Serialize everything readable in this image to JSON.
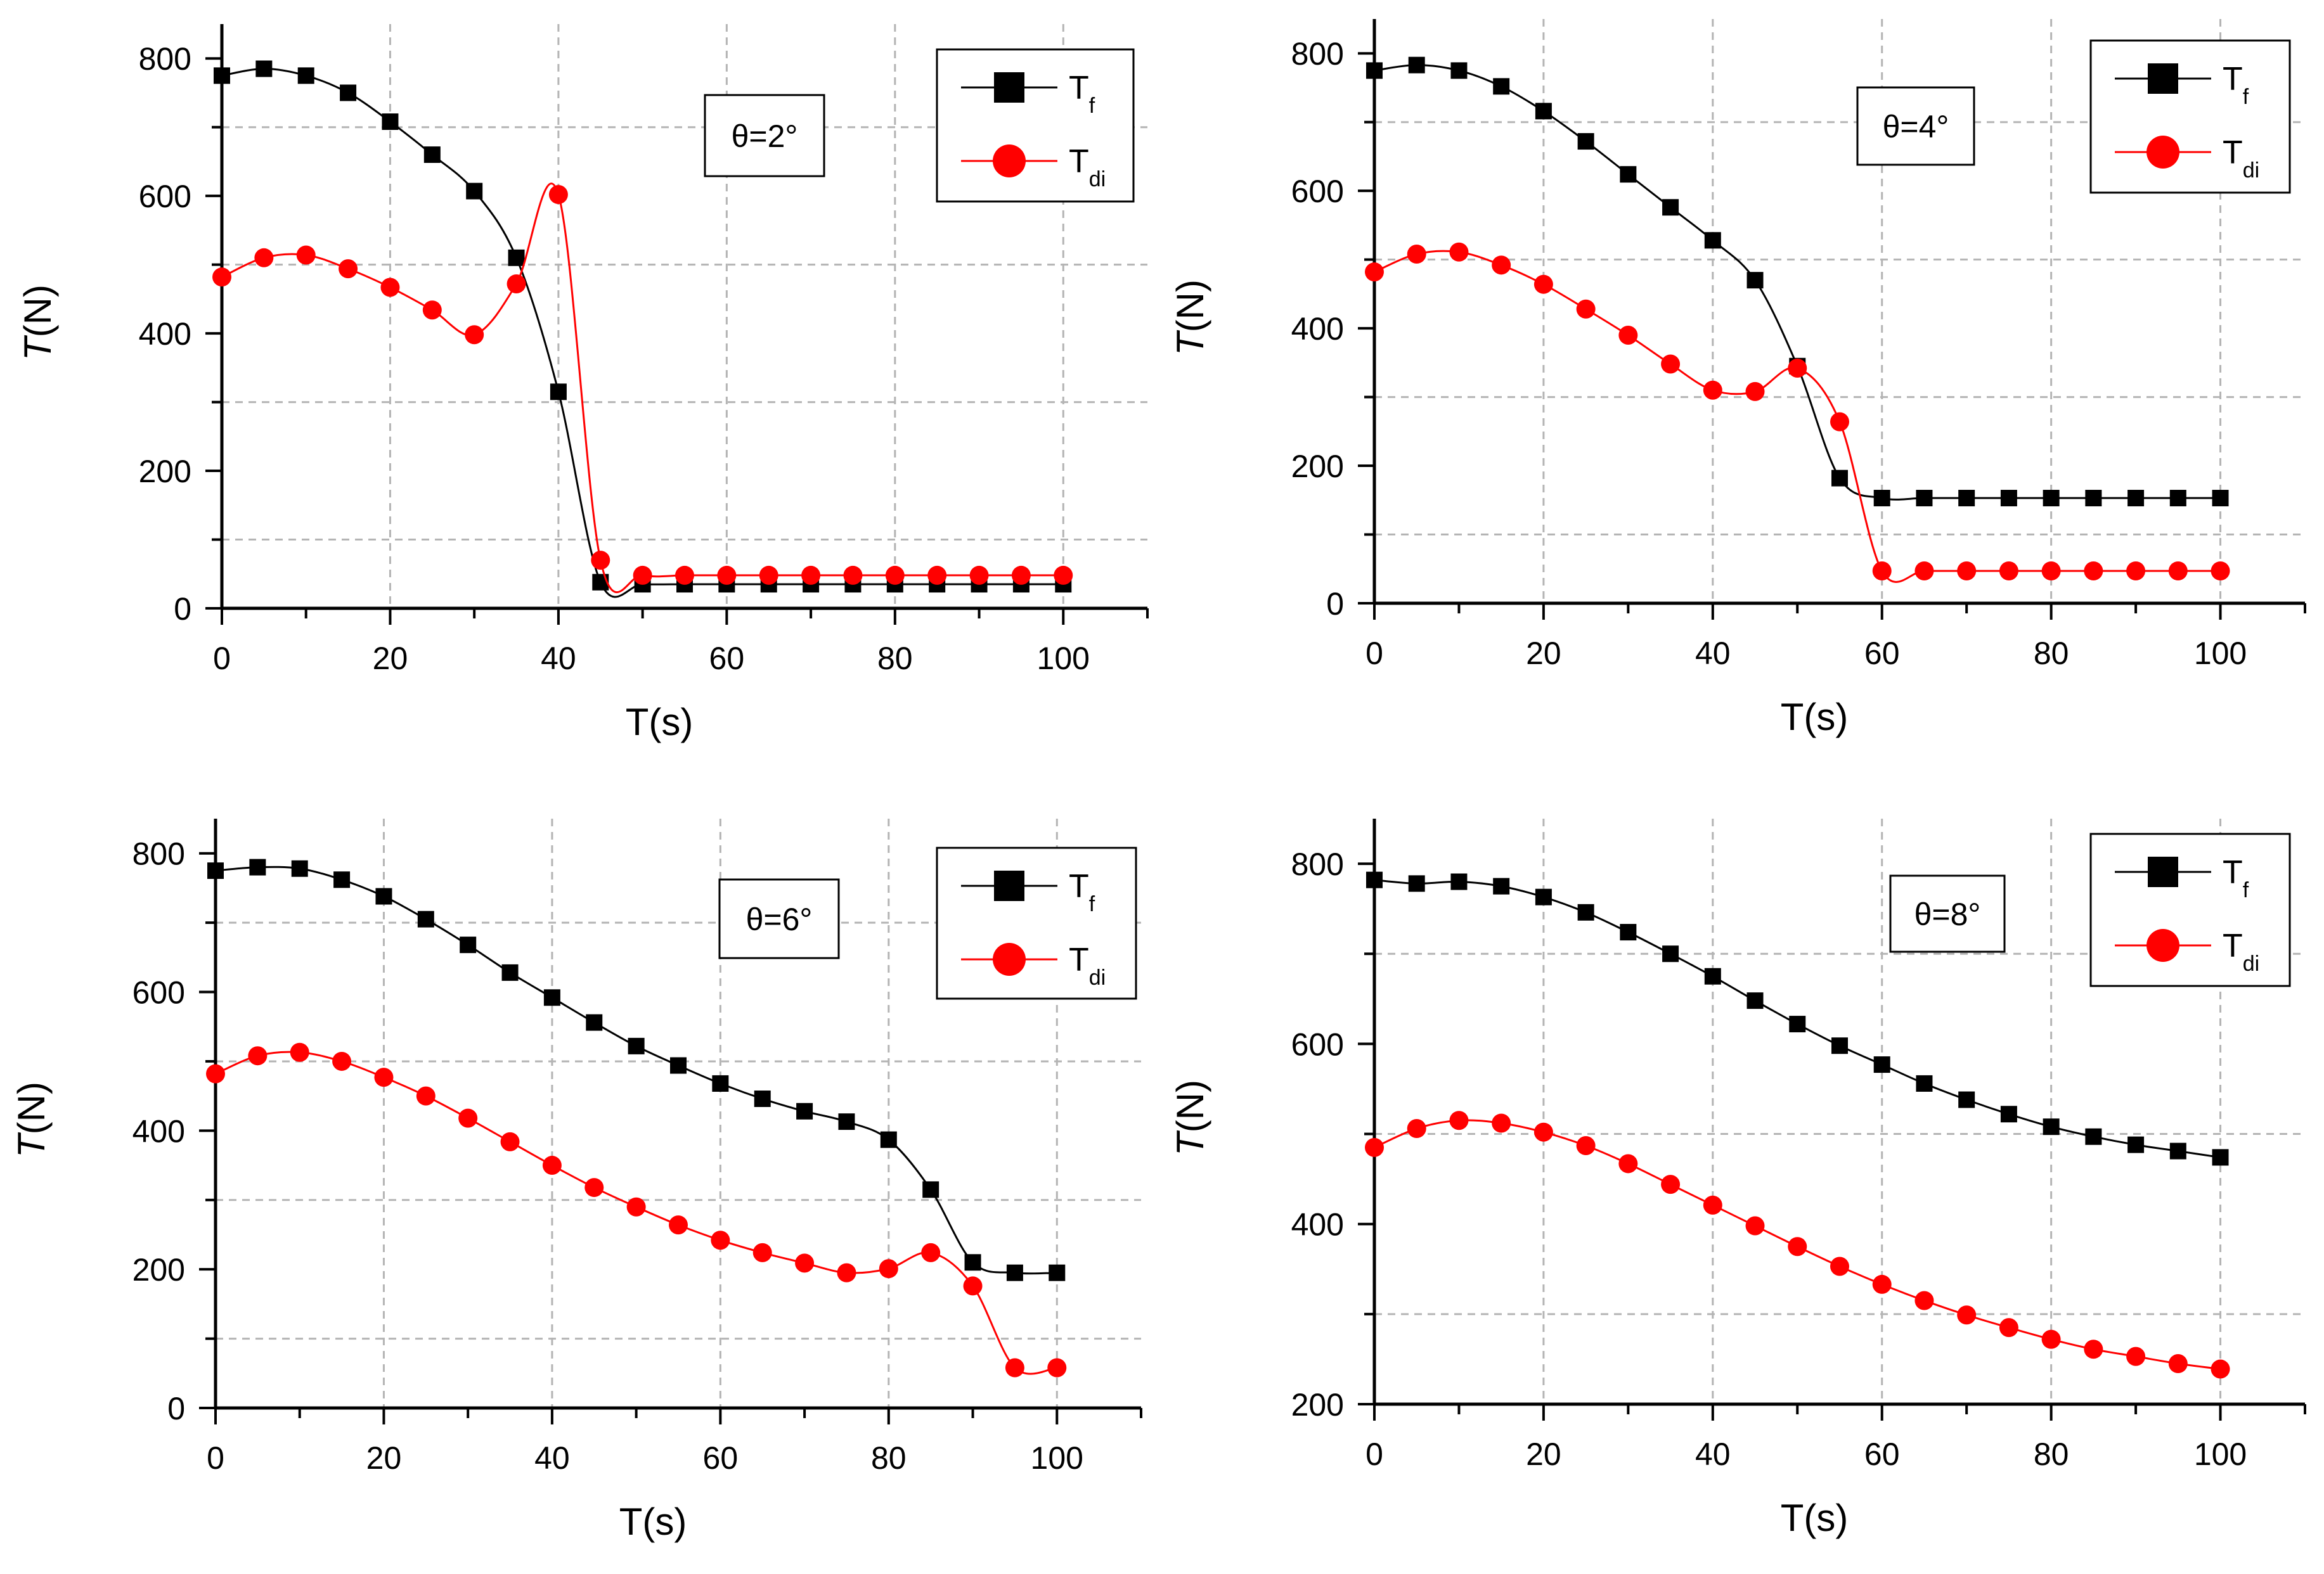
{
  "chart_data": [
    {
      "type": "line",
      "panel": "top-left",
      "annotation": "θ=2°",
      "xlabel": "T(s)",
      "ylabel_italic": "T",
      "ylabel_rest": "(N)",
      "xlim": [
        0,
        110
      ],
      "ylim": [
        0,
        850
      ],
      "xticks": [
        0,
        20,
        40,
        60,
        80,
        100
      ],
      "yticks": [
        0,
        200,
        400,
        600,
        800
      ],
      "grid_x": [
        20,
        40,
        60,
        80,
        100
      ],
      "grid_y": [
        100,
        300,
        500,
        700
      ],
      "legend_position": "top-right",
      "x": [
        0,
        5,
        10,
        15,
        20,
        25,
        30,
        35,
        40,
        45,
        50,
        55,
        60,
        65,
        70,
        75,
        80,
        85,
        90,
        95,
        100
      ],
      "series": [
        {
          "name": "T",
          "sub": "f",
          "color": "#000000",
          "marker": "square",
          "values": [
            775,
            785,
            775,
            750,
            708,
            660,
            607,
            510,
            315,
            38,
            35,
            35,
            35,
            35,
            35,
            35,
            35,
            35,
            35,
            35,
            35
          ]
        },
        {
          "name": "T",
          "sub": "di",
          "color": "#ff0000",
          "marker": "circle",
          "values": [
            482,
            510,
            514,
            494,
            467,
            434,
            398,
            472,
            602,
            70,
            48,
            48,
            48,
            48,
            48,
            48,
            48,
            48,
            48,
            48,
            48
          ]
        }
      ]
    },
    {
      "type": "line",
      "panel": "top-right",
      "annotation": "θ=4°",
      "xlabel": "T(s)",
      "ylabel_italic": "T",
      "ylabel_rest": "(N)",
      "xlim": [
        0,
        110
      ],
      "ylim": [
        0,
        850
      ],
      "xticks": [
        0,
        20,
        40,
        60,
        80,
        100
      ],
      "yticks": [
        0,
        200,
        400,
        600,
        800
      ],
      "grid_x": [
        20,
        40,
        60,
        80,
        100
      ],
      "grid_y": [
        100,
        300,
        500,
        700
      ],
      "legend_position": "top-right",
      "x": [
        0,
        5,
        10,
        15,
        20,
        25,
        30,
        35,
        40,
        45,
        50,
        55,
        60,
        65,
        70,
        75,
        80,
        85,
        90,
        95,
        100
      ],
      "series": [
        {
          "name": "T",
          "sub": "f",
          "color": "#000000",
          "marker": "square",
          "values": [
            775,
            783,
            775,
            752,
            716,
            672,
            624,
            576,
            528,
            470,
            345,
            182,
            153,
            153,
            153,
            153,
            153,
            153,
            153,
            153,
            153
          ]
        },
        {
          "name": "T",
          "sub": "di",
          "color": "#ff0000",
          "marker": "circle",
          "values": [
            482,
            508,
            511,
            492,
            464,
            428,
            390,
            348,
            310,
            308,
            342,
            264,
            47,
            47,
            47,
            47,
            47,
            47,
            47,
            47,
            47
          ]
        }
      ]
    },
    {
      "type": "line",
      "panel": "bottom-left",
      "annotation": "θ=6°",
      "xlabel": "T(s)",
      "ylabel_italic": "T",
      "ylabel_rest": "(N)",
      "xlim": [
        0,
        110
      ],
      "ylim": [
        0,
        850
      ],
      "xticks": [
        0,
        20,
        40,
        60,
        80,
        100
      ],
      "yticks": [
        0,
        200,
        400,
        600,
        800
      ],
      "grid_x": [
        20,
        40,
        60,
        80,
        100
      ],
      "grid_y": [
        100,
        300,
        500,
        700
      ],
      "legend_position": "top-right",
      "x": [
        0,
        5,
        10,
        15,
        20,
        25,
        30,
        35,
        40,
        45,
        50,
        55,
        60,
        65,
        70,
        75,
        80,
        85,
        90,
        95,
        100
      ],
      "series": [
        {
          "name": "T",
          "sub": "f",
          "color": "#000000",
          "marker": "square",
          "values": [
            775,
            780,
            778,
            762,
            738,
            705,
            668,
            628,
            592,
            556,
            522,
            494,
            468,
            446,
            428,
            413,
            387,
            315,
            210,
            195,
            195
          ]
        },
        {
          "name": "T",
          "sub": "di",
          "color": "#ff0000",
          "marker": "circle",
          "values": [
            482,
            508,
            513,
            500,
            477,
            450,
            418,
            384,
            350,
            318,
            290,
            264,
            242,
            224,
            209,
            195,
            201,
            224,
            176,
            58,
            58
          ]
        }
      ]
    },
    {
      "type": "line",
      "panel": "bottom-right",
      "annotation": "θ=8°",
      "xlabel": "T(s)",
      "ylabel_italic": "T",
      "ylabel_rest": "(N)",
      "xlim": [
        0,
        110
      ],
      "ylim": [
        200,
        850
      ],
      "xticks": [
        0,
        20,
        40,
        60,
        80,
        100
      ],
      "yticks": [
        200,
        400,
        600,
        800
      ],
      "grid_x": [
        20,
        40,
        60,
        80,
        100
      ],
      "grid_y": [
        300,
        500,
        700
      ],
      "legend_position": "top-right",
      "x": [
        0,
        5,
        10,
        15,
        20,
        25,
        30,
        35,
        40,
        45,
        50,
        55,
        60,
        65,
        70,
        75,
        80,
        85,
        90,
        95,
        100
      ],
      "series": [
        {
          "name": "T",
          "sub": "f",
          "color": "#000000",
          "marker": "square",
          "values": [
            782,
            778,
            780,
            775,
            763,
            746,
            724,
            700,
            675,
            648,
            622,
            598,
            577,
            556,
            538,
            522,
            508,
            497,
            488,
            481,
            474
          ]
        },
        {
          "name": "T",
          "sub": "di",
          "color": "#ff0000",
          "marker": "circle",
          "values": [
            485,
            506,
            515,
            512,
            502,
            487,
            467,
            444,
            421,
            398,
            375,
            353,
            333,
            315,
            299,
            285,
            272,
            261,
            253,
            245,
            239
          ]
        }
      ]
    }
  ]
}
